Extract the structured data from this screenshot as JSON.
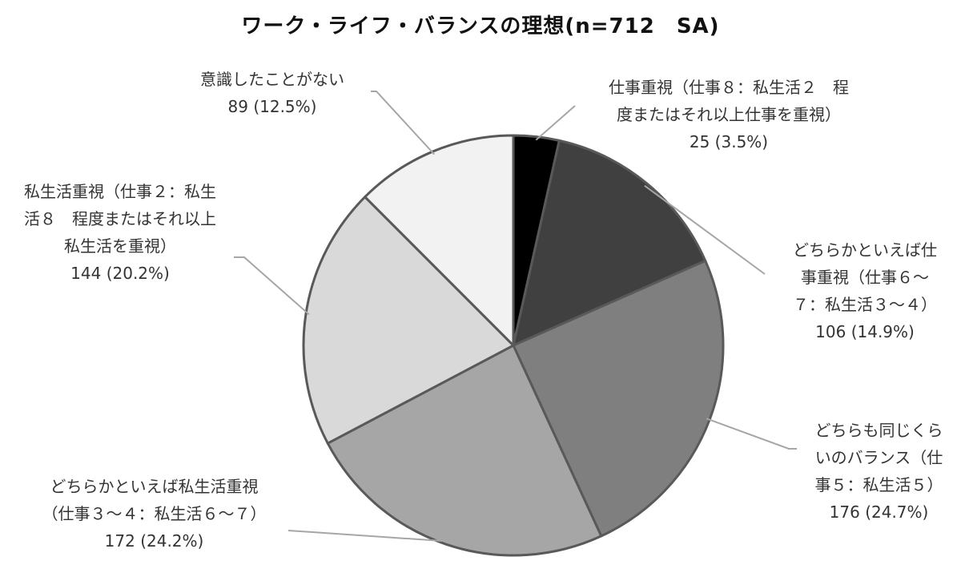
{
  "chart_data": {
    "type": "pie",
    "title": "ワーク・ライフ・バランスの理想(n=712　SA)",
    "slices": [
      {
        "lines": [
          "仕事重視（仕事８：私生活２　程",
          "度またはそれ以上仕事を重視）",
          "25 (3.5%)"
        ],
        "value": 25,
        "percent": 3.5,
        "color": "#000000"
      },
      {
        "lines": [
          "どちらかといえば仕",
          "事重視（仕事６～",
          "７：私生活３～４）",
          "106 (14.9%)"
        ],
        "value": 106,
        "percent": 14.9,
        "color": "#404040"
      },
      {
        "lines": [
          "どちらも同じくら",
          "いのバランス（仕",
          "事５：私生活５）",
          "176 (24.7%)"
        ],
        "value": 176,
        "percent": 24.7,
        "color": "#7f7f7f"
      },
      {
        "lines": [
          "どちらかといえば私生活重視",
          "（仕事３～４：私生活６～７）",
          "172 (24.2%)"
        ],
        "value": 172,
        "percent": 24.2,
        "color": "#a6a6a6"
      },
      {
        "lines": [
          "私生活重視（仕事２：私生",
          "活８　程度またはそれ以上",
          "私生活を重視）",
          "144 (20.2%)"
        ],
        "value": 144,
        "percent": 20.2,
        "color": "#d9d9d9"
      },
      {
        "lines": [
          "意識したことがない",
          "89 (12.5%)"
        ],
        "value": 89,
        "percent": 12.5,
        "color": "#f2f2f2"
      }
    ]
  }
}
